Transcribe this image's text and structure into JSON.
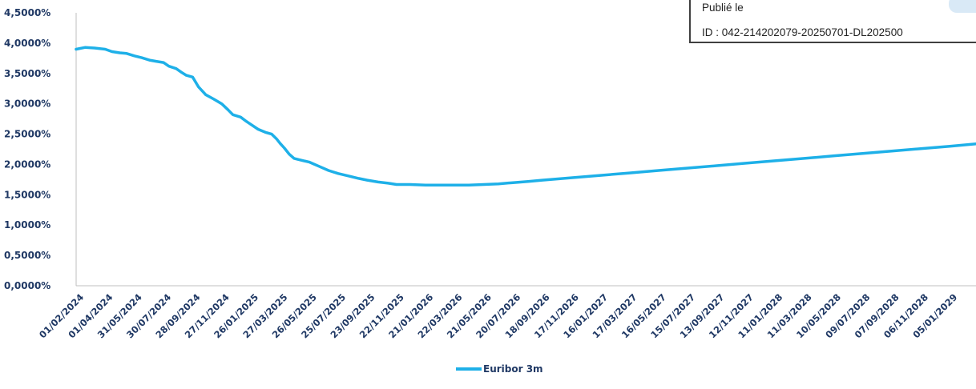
{
  "stamp": {
    "published_label": "Publié le",
    "id_text": "ID : 042-214202079-20250701-DL202500"
  },
  "colors": {
    "series": "#1eb0e8",
    "text": "#1f3864",
    "axis": "#bfbfbf"
  },
  "chart_data": {
    "type": "line",
    "title": "",
    "xlabel": "",
    "ylabel": "",
    "ylim": [
      0,
      4.5
    ],
    "y_ticks": [
      "0,0000%",
      "0,5000%",
      "1,0000%",
      "1,5000%",
      "2,0000%",
      "2,5000%",
      "3,0000%",
      "3,5000%",
      "4,0000%",
      "4,5000%"
    ],
    "x_ticks": [
      "01/02/2024",
      "01/04/2024",
      "31/05/2024",
      "30/07/2024",
      "28/09/2024",
      "27/11/2024",
      "26/01/2025",
      "27/03/2025",
      "26/05/2025",
      "25/07/2025",
      "23/09/2025",
      "22/11/2025",
      "21/01/2026",
      "22/03/2026",
      "21/05/2026",
      "20/07/2026",
      "18/09/2026",
      "17/11/2026",
      "16/01/2027",
      "17/03/2027",
      "16/05/2027",
      "15/07/2027",
      "13/09/2027",
      "12/11/2027",
      "11/01/2028",
      "11/03/2028",
      "10/05/2028",
      "09/07/2028",
      "07/09/2028",
      "06/11/2028",
      "05/01/2029"
    ],
    "x_end": "2029-02-28",
    "grid": false,
    "legend": "bottom-center",
    "series": [
      {
        "name": "Euribor 3m",
        "x": [
          "2024-02-01",
          "2024-02-20",
          "2024-03-10",
          "2024-04-01",
          "2024-04-15",
          "2024-05-01",
          "2024-05-15",
          "2024-05-31",
          "2024-06-15",
          "2024-07-01",
          "2024-07-15",
          "2024-07-30",
          "2024-08-10",
          "2024-08-25",
          "2024-09-05",
          "2024-09-15",
          "2024-09-28",
          "2024-10-10",
          "2024-10-25",
          "2024-11-10",
          "2024-11-27",
          "2024-12-10",
          "2024-12-20",
          "2025-01-05",
          "2025-01-15",
          "2025-01-26",
          "2025-02-10",
          "2025-02-25",
          "2025-03-10",
          "2025-03-20",
          "2025-03-27",
          "2025-04-05",
          "2025-04-15",
          "2025-04-25",
          "2025-05-05",
          "2025-05-15",
          "2025-05-26",
          "2025-06-15",
          "2025-07-05",
          "2025-07-25",
          "2025-08-15",
          "2025-09-05",
          "2025-09-23",
          "2025-10-15",
          "2025-11-05",
          "2025-11-22",
          "2025-12-20",
          "2026-01-21",
          "2026-02-20",
          "2026-03-22",
          "2026-04-20",
          "2026-05-21",
          "2026-06-20",
          "2026-07-20",
          "2026-08-20",
          "2026-09-18",
          "2026-10-18",
          "2026-11-17",
          "2026-12-17",
          "2027-01-16",
          "2027-03-17",
          "2027-05-16",
          "2027-07-15",
          "2027-09-13",
          "2027-11-12",
          "2028-01-11",
          "2028-03-11",
          "2028-05-10",
          "2028-07-09",
          "2028-09-07",
          "2028-11-06",
          "2029-01-05",
          "2029-02-28"
        ],
        "y": [
          3.9,
          3.93,
          3.92,
          3.9,
          3.86,
          3.84,
          3.83,
          3.79,
          3.76,
          3.72,
          3.7,
          3.68,
          3.62,
          3.58,
          3.52,
          3.47,
          3.44,
          3.28,
          3.15,
          3.08,
          3.0,
          2.9,
          2.82,
          2.78,
          2.72,
          2.66,
          2.58,
          2.53,
          2.5,
          2.42,
          2.35,
          2.27,
          2.17,
          2.1,
          2.08,
          2.06,
          2.04,
          1.97,
          1.9,
          1.85,
          1.81,
          1.77,
          1.74,
          1.71,
          1.69,
          1.67,
          1.67,
          1.66,
          1.66,
          1.66,
          1.66,
          1.67,
          1.68,
          1.7,
          1.72,
          1.74,
          1.76,
          1.78,
          1.8,
          1.82,
          1.86,
          1.9,
          1.94,
          1.98,
          2.02,
          2.06,
          2.1,
          2.14,
          2.18,
          2.22,
          2.26,
          2.3,
          2.34
        ]
      }
    ]
  }
}
